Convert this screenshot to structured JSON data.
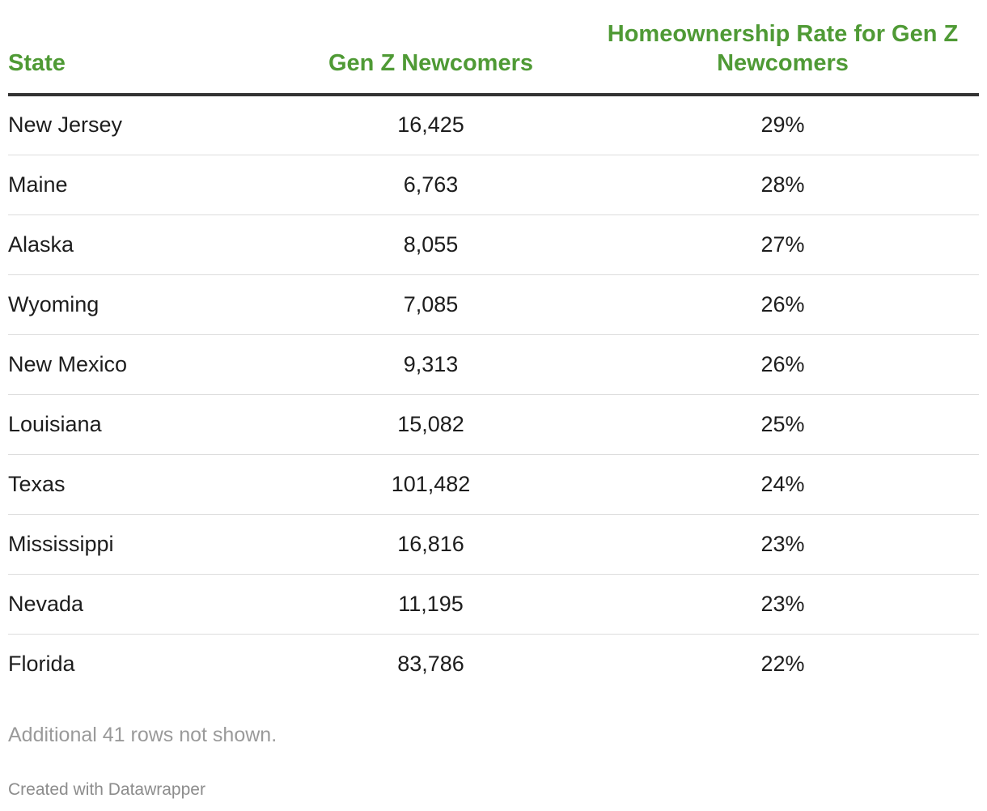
{
  "table": {
    "headers": {
      "state": "State",
      "newcomers": "Gen Z Newcomers",
      "rate": "Homeownership Rate for Gen Z Newcomers"
    },
    "rows": [
      {
        "state": "New Jersey",
        "newcomers": "16,425",
        "rate": "29%"
      },
      {
        "state": "Maine",
        "newcomers": "6,763",
        "rate": "28%"
      },
      {
        "state": "Alaska",
        "newcomers": "8,055",
        "rate": "27%"
      },
      {
        "state": "Wyoming",
        "newcomers": "7,085",
        "rate": "26%"
      },
      {
        "state": "New Mexico",
        "newcomers": "9,313",
        "rate": "26%"
      },
      {
        "state": "Louisiana",
        "newcomers": "15,082",
        "rate": "25%"
      },
      {
        "state": "Texas",
        "newcomers": "101,482",
        "rate": "24%"
      },
      {
        "state": "Mississippi",
        "newcomers": "16,816",
        "rate": "23%"
      },
      {
        "state": "Nevada",
        "newcomers": "11,195",
        "rate": "23%"
      },
      {
        "state": "Florida",
        "newcomers": "83,786",
        "rate": "22%"
      }
    ]
  },
  "footer": {
    "note": "Additional 41 rows not shown.",
    "credit": "Created with Datawrapper"
  },
  "colors": {
    "header_text": "#4f9a35",
    "header_rule": "#333333",
    "row_divider": "#dddddd"
  }
}
